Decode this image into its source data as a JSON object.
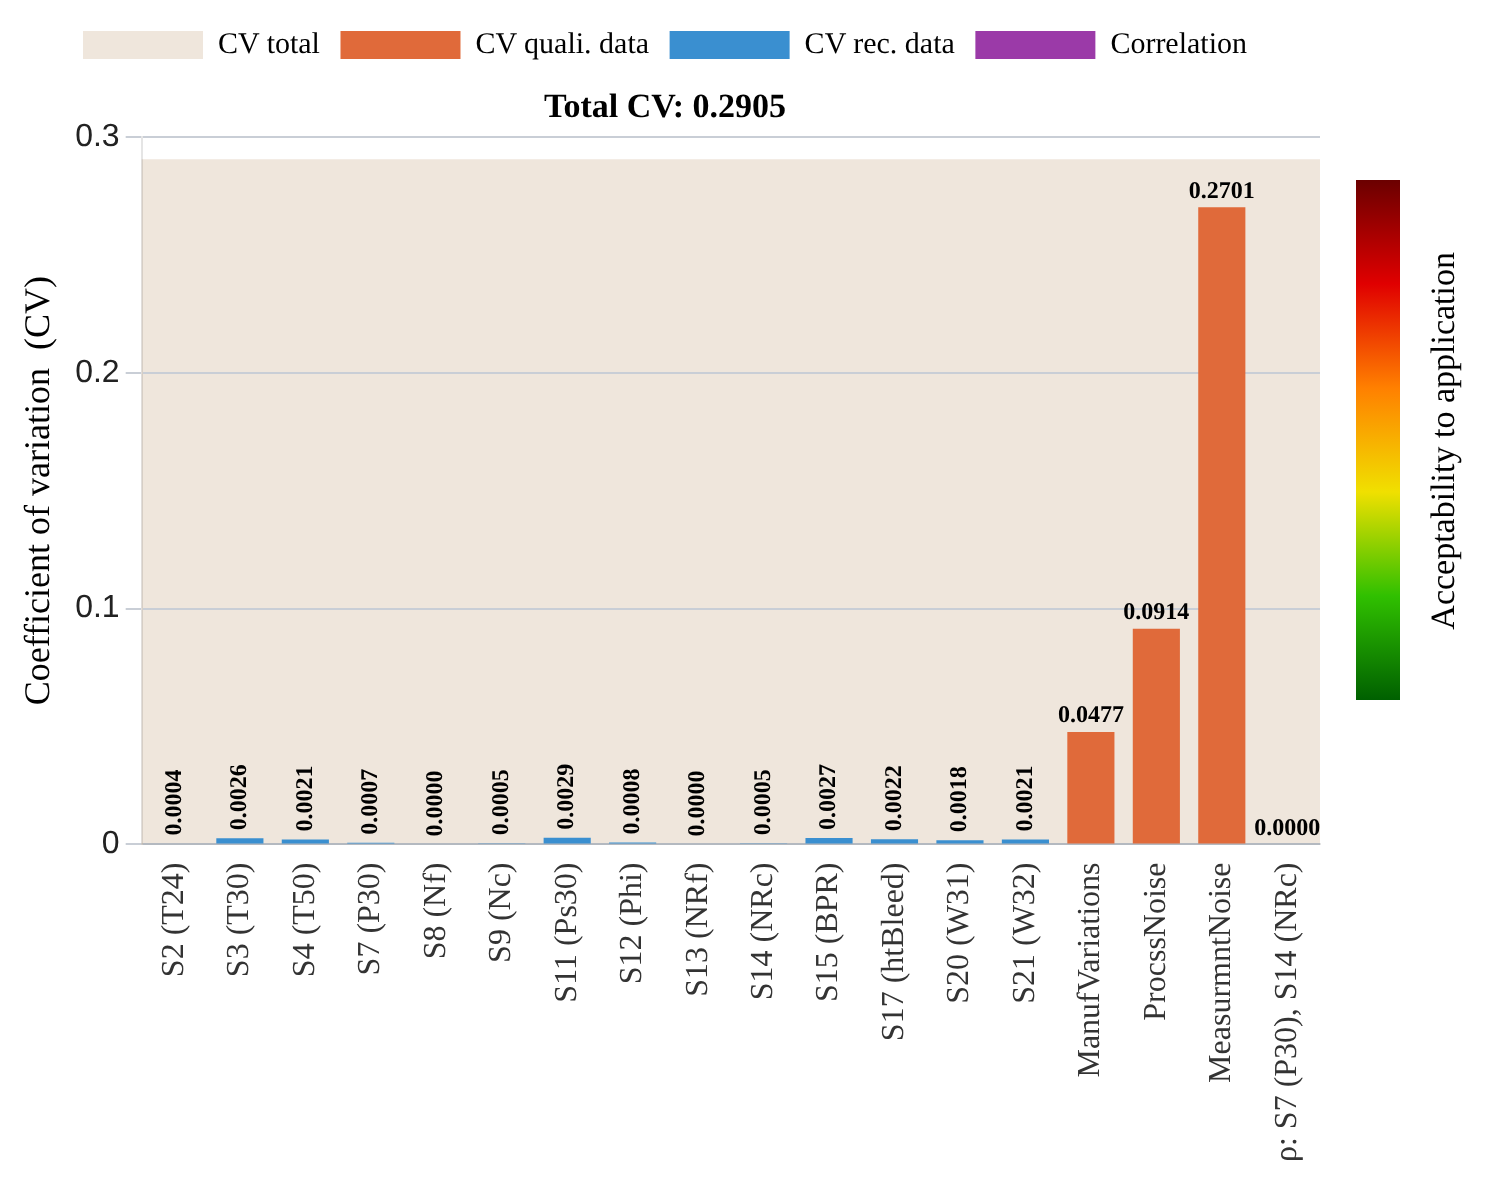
{
  "chart_data": {
    "type": "bar",
    "title": "Total CV: 0.2905",
    "ylabel": "Coefficient of variation  (CV)",
    "clabel": "Acceptability to application",
    "categories": [
      "S2 (T24)",
      "S3 (T30)",
      "S4 (T50)",
      "S7 (P30)",
      "S8 (Nf)",
      "S9 (Nc)",
      "S11 (Ps30)",
      "S12 (Phi)",
      "S13 (NRf)",
      "S14 (NRc)",
      "S15 (BPR)",
      "S17 (htBleed)",
      "S20 (W31)",
      "S21 (W32)",
      "ManufVariations",
      "ProcssNoise",
      "MeasurmntNoise",
      "ρ: S7 (P30), S14 (NRc)"
    ],
    "series": [
      {
        "name": "CV quali. data",
        "color": "#e06a3a",
        "values": [
          null,
          null,
          null,
          null,
          null,
          null,
          null,
          null,
          null,
          null,
          null,
          null,
          null,
          null,
          0.0477,
          0.0914,
          0.2701,
          null
        ],
        "value_labels": [
          null,
          null,
          null,
          null,
          null,
          null,
          null,
          null,
          null,
          null,
          null,
          null,
          null,
          null,
          "0.0477",
          "0.0914",
          "0.2701",
          null
        ]
      },
      {
        "name": "CV rec. data",
        "color": "#3a8fd0",
        "values": [
          0.0004,
          0.0026,
          0.0021,
          0.0007,
          0.0,
          0.0005,
          0.0029,
          0.0008,
          0.0,
          0.0005,
          0.0027,
          0.0022,
          0.0018,
          0.0021,
          null,
          null,
          null,
          null
        ],
        "value_labels": [
          "0.0004",
          "0.0026",
          "0.0021",
          "0.0007",
          "0.0000",
          "0.0005",
          "0.0029",
          "0.0008",
          "0.0000",
          "0.0005",
          "0.0027",
          "0.0022",
          "0.0018",
          "0.0021",
          null,
          null,
          null,
          null
        ]
      },
      {
        "name": "Correlation",
        "color": "#9b3aa8",
        "values": [
          null,
          null,
          null,
          null,
          null,
          null,
          null,
          null,
          null,
          null,
          null,
          null,
          null,
          null,
          null,
          null,
          null,
          0.0
        ],
        "value_labels": [
          null,
          null,
          null,
          null,
          null,
          null,
          null,
          null,
          null,
          null,
          null,
          null,
          null,
          null,
          null,
          null,
          null,
          "0.0000"
        ]
      }
    ],
    "bands": [
      {
        "axis": "y",
        "from": 0,
        "to": 0.2905,
        "label": "CV total",
        "color": "#efe6dc"
      }
    ],
    "ylim": [
      0,
      0.3
    ],
    "yticks": [
      0,
      0.1,
      0.2,
      0.3
    ],
    "grid": "y",
    "legend": "top"
  }
}
